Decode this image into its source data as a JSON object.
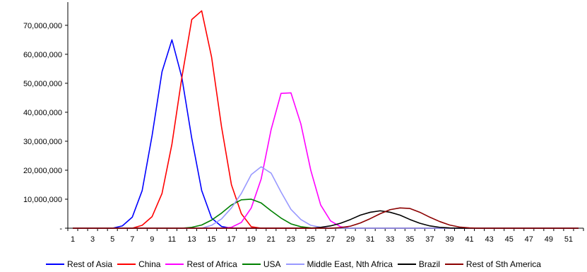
{
  "chart_data": {
    "type": "line",
    "title": "",
    "xlabel": "",
    "ylabel": "",
    "x": [
      1,
      2,
      3,
      4,
      5,
      6,
      7,
      8,
      9,
      10,
      11,
      12,
      13,
      14,
      15,
      16,
      17,
      18,
      19,
      20,
      21,
      22,
      23,
      24,
      25,
      26,
      27,
      28,
      29,
      30,
      31,
      32,
      33,
      34,
      35,
      36,
      37,
      38,
      39,
      40,
      41,
      42,
      43,
      44,
      45,
      46,
      47,
      48,
      49,
      50,
      51,
      52
    ],
    "x_tick_labels": [
      "1",
      "3",
      "5",
      "7",
      "9",
      "11",
      "13",
      "15",
      "17",
      "19",
      "21",
      "23",
      "25",
      "27",
      "29",
      "31",
      "33",
      "35",
      "37",
      "39",
      "41",
      "43",
      "45",
      "47",
      "49",
      "51"
    ],
    "y_tick_labels": [
      "-",
      "10,000,000",
      "20,000,000",
      "30,000,000",
      "40,000,000",
      "50,000,000",
      "60,000,000",
      "70,000,000"
    ],
    "ylim": [
      0,
      78000000
    ],
    "grid": false,
    "legend_position": "bottom",
    "series": [
      {
        "name": "Rest of Asia",
        "color": "#0000ff",
        "values": [
          0,
          0,
          0,
          0,
          0,
          800000,
          3800000,
          13000000,
          32000000,
          54000000,
          65000000,
          52000000,
          31000000,
          13000000,
          3500000,
          600000,
          0,
          0,
          0,
          0,
          0,
          0,
          0,
          0,
          0,
          0,
          0,
          0,
          0,
          0,
          0,
          0,
          0,
          0,
          0,
          0,
          0,
          0,
          0,
          0,
          0,
          0,
          0,
          0,
          0,
          0,
          0,
          0,
          0,
          0,
          0,
          0
        ]
      },
      {
        "name": "China",
        "color": "#ff0000",
        "values": [
          0,
          0,
          0,
          0,
          0,
          0,
          0,
          1000000,
          4000000,
          12000000,
          29000000,
          52000000,
          72000000,
          75000000,
          59000000,
          35000000,
          15000000,
          5000000,
          500000,
          0,
          0,
          0,
          0,
          0,
          0,
          0,
          0,
          0,
          0,
          0,
          0,
          0,
          0,
          0,
          0,
          0,
          0,
          0,
          0,
          0,
          0,
          0,
          0,
          0,
          0,
          0,
          0,
          0,
          0,
          0,
          0,
          0
        ]
      },
      {
        "name": "Rest of Africa",
        "color": "#ff00ff",
        "values": [
          0,
          0,
          0,
          0,
          0,
          0,
          0,
          0,
          0,
          0,
          0,
          0,
          0,
          0,
          0,
          0,
          300000,
          2000000,
          7000000,
          17000000,
          34000000,
          46500000,
          46700000,
          36000000,
          20000000,
          8000000,
          2500000,
          500000,
          0,
          0,
          0,
          0,
          0,
          0,
          0,
          0,
          0,
          0,
          0,
          0,
          0,
          0,
          0,
          0,
          0,
          0,
          0,
          0,
          0,
          0,
          0,
          0
        ]
      },
      {
        "name": "USA",
        "color": "#008000",
        "values": [
          0,
          0,
          0,
          0,
          0,
          0,
          0,
          0,
          0,
          0,
          0,
          0,
          300000,
          1100000,
          2800000,
          5200000,
          8000000,
          9800000,
          10000000,
          8700000,
          6000000,
          3500000,
          1500000,
          500000,
          100000,
          0,
          0,
          0,
          0,
          0,
          0,
          0,
          0,
          0,
          0,
          0,
          0,
          0,
          0,
          0,
          0,
          0,
          0,
          0,
          0,
          0,
          0,
          0,
          0,
          0,
          0,
          0
        ]
      },
      {
        "name": "Middle East, Nth Africa",
        "color": "#9999ff",
        "values": [
          0,
          0,
          0,
          0,
          0,
          0,
          0,
          0,
          0,
          0,
          0,
          0,
          0,
          0,
          1000000,
          3200000,
          7000000,
          12000000,
          18500000,
          21200000,
          19000000,
          12500000,
          6500000,
          3000000,
          1000000,
          300000,
          0,
          0,
          0,
          0,
          0,
          0,
          0,
          0,
          0,
          0,
          0,
          0,
          0,
          0,
          0,
          0,
          0,
          0,
          0,
          0,
          0,
          0,
          0,
          0,
          0,
          0
        ]
      },
      {
        "name": "Brazil",
        "color": "#000000",
        "values": [
          0,
          0,
          0,
          0,
          0,
          0,
          0,
          0,
          0,
          0,
          0,
          0,
          0,
          0,
          0,
          0,
          0,
          0,
          0,
          0,
          0,
          0,
          0,
          0,
          0,
          300000,
          800000,
          1700000,
          3000000,
          4500000,
          5500000,
          6000000,
          5500000,
          4500000,
          3000000,
          1700000,
          800000,
          300000,
          100000,
          0,
          0,
          0,
          0,
          0,
          0,
          0,
          0,
          0,
          0,
          0,
          0,
          0
        ]
      },
      {
        "name": "Rest of Sth America",
        "color": "#8b0000",
        "values": [
          0,
          0,
          0,
          0,
          0,
          0,
          0,
          0,
          0,
          0,
          0,
          0,
          0,
          0,
          0,
          0,
          0,
          0,
          0,
          0,
          0,
          0,
          0,
          0,
          0,
          0,
          0,
          200000,
          700000,
          1800000,
          3300000,
          5000000,
          6400000,
          7000000,
          6800000,
          5500000,
          3800000,
          2300000,
          1100000,
          400000,
          100000,
          0,
          0,
          0,
          0,
          0,
          0,
          0,
          0,
          0,
          0,
          0
        ]
      }
    ]
  }
}
